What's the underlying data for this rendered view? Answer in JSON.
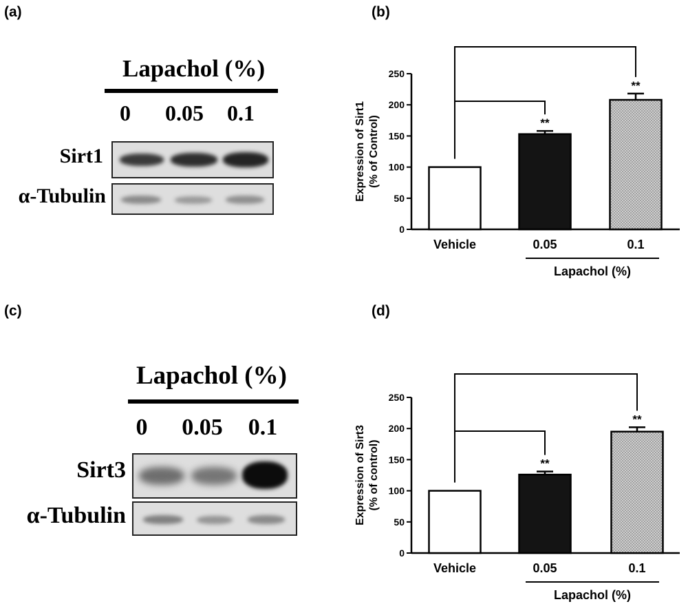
{
  "panels": {
    "a": "(a)",
    "b": "(b)",
    "c": "(c)",
    "d": "(d)"
  },
  "blot_a": {
    "title": "Lapachol (%)",
    "lanes": [
      "0",
      "0.05",
      "0.1"
    ],
    "rows": [
      "Sirt1",
      "α-Tubulin"
    ]
  },
  "blot_c": {
    "title": "Lapachol (%)",
    "lanes": [
      "0",
      "0.05",
      "0.1"
    ],
    "rows": [
      "Sirt3",
      "α-Tubulin"
    ]
  },
  "chart_data": [
    {
      "panel": "b",
      "type": "bar",
      "categories": [
        "Vehicle",
        "0.05",
        "0.1"
      ],
      "values": [
        100,
        153,
        208
      ],
      "errors": [
        0,
        5,
        10
      ],
      "significance": [
        "",
        "**",
        "**"
      ],
      "ylabel": "Expression of Sirt1 (% of Control)",
      "ylabel_lines": [
        "Expression of Sirt1",
        "(% of Control)"
      ],
      "group_label": "Lapachol (%)",
      "yticks": [
        0,
        50,
        100,
        150,
        200,
        250
      ],
      "ylim": [
        0,
        250
      ],
      "bar_fills": [
        "#ffffff",
        "#141414",
        "#cfcfcf"
      ]
    },
    {
      "panel": "d",
      "type": "bar",
      "categories": [
        "Vehicle",
        "0.05",
        "0.1"
      ],
      "values": [
        100,
        126,
        195
      ],
      "errors": [
        0,
        5,
        7
      ],
      "significance": [
        "",
        "**",
        "**"
      ],
      "ylabel": "Expression of Sirt3 (% of control)",
      "ylabel_lines": [
        "Expression of Sirt3",
        "(% of control)"
      ],
      "group_label": "Lapachol (%)",
      "yticks": [
        0,
        50,
        100,
        150,
        200,
        250
      ],
      "ylim": [
        0,
        250
      ],
      "bar_fills": [
        "#ffffff",
        "#141414",
        "#cfcfcf"
      ]
    }
  ]
}
